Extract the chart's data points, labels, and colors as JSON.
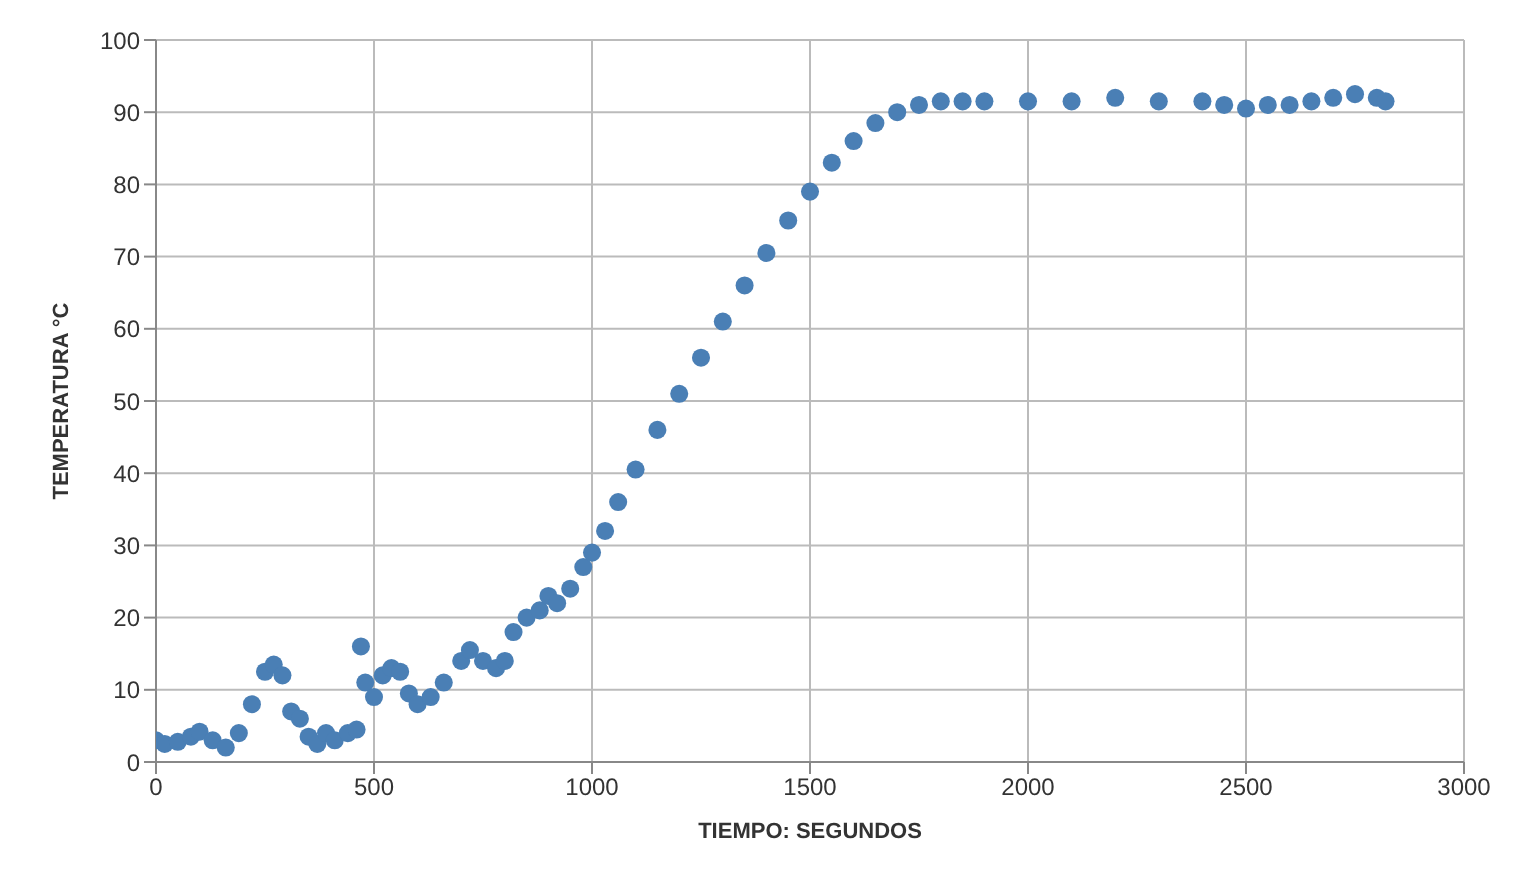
{
  "chart_data": {
    "type": "scatter",
    "xlabel": "TIEMPO: SEGUNDOS",
    "ylabel": "TEMPERATURA °C",
    "x": [
      0,
      20,
      50,
      80,
      100,
      130,
      160,
      190,
      220,
      250,
      270,
      290,
      310,
      330,
      350,
      370,
      390,
      410,
      440,
      460,
      470,
      480,
      500,
      520,
      540,
      560,
      580,
      600,
      630,
      660,
      700,
      720,
      750,
      780,
      800,
      820,
      850,
      880,
      900,
      920,
      950,
      980,
      1000,
      1030,
      1060,
      1100,
      1150,
      1200,
      1250,
      1300,
      1350,
      1400,
      1450,
      1500,
      1550,
      1600,
      1650,
      1700,
      1750,
      1800,
      1850,
      1900,
      2000,
      2100,
      2200,
      2300,
      2400,
      2450,
      2500,
      2550,
      2600,
      2650,
      2700,
      2750,
      2800,
      2820
    ],
    "series": [
      {
        "color": "#4a7fb5",
        "values": [
          3,
          2.5,
          2.8,
          3.5,
          4.2,
          3,
          2,
          4,
          8,
          12.5,
          13.5,
          12,
          7,
          6,
          3.5,
          2.5,
          4,
          3,
          4,
          4.5,
          16,
          11,
          9,
          12,
          13,
          12.5,
          9.5,
          8,
          9,
          11,
          14,
          15.5,
          14,
          13,
          14,
          18,
          20,
          21,
          23,
          22,
          24,
          27,
          29,
          32,
          36,
          40.5,
          46,
          51,
          56,
          61,
          66,
          70.5,
          75,
          79,
          83,
          86,
          88.5,
          90,
          91,
          91.5,
          91.5,
          91.5,
          91.5,
          91.5,
          92,
          91.5,
          91.5,
          91,
          90.5,
          91,
          91,
          91.5,
          92,
          92.5,
          92,
          91.5
        ]
      }
    ],
    "xlim": [
      0,
      3000
    ],
    "xticks": [
      0,
      500,
      1000,
      1500,
      2000,
      2500,
      3000
    ],
    "ylim": [
      0,
      100
    ],
    "yticks": [
      0,
      10,
      20,
      30,
      40,
      50,
      60,
      70,
      80,
      90,
      100
    ],
    "grid": true,
    "marker": "circle",
    "legend": false
  }
}
